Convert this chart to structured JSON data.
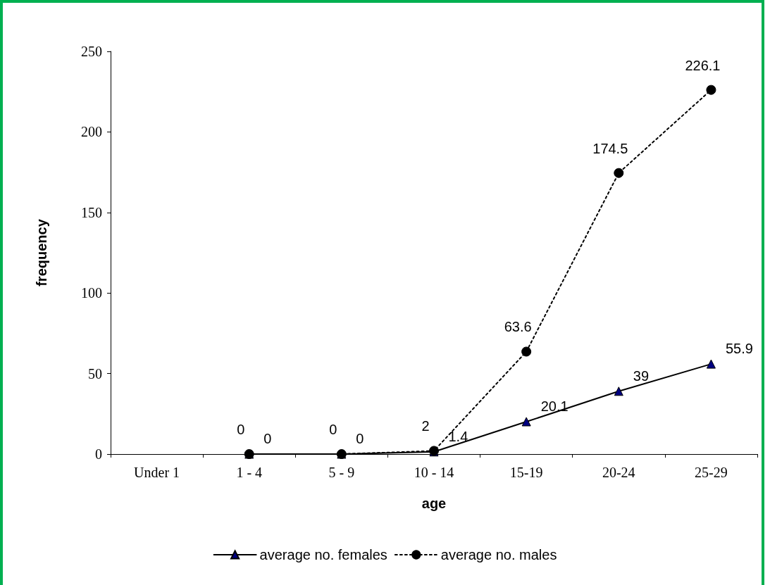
{
  "chart_data": {
    "type": "line",
    "xlabel": "age",
    "ylabel": "frequency",
    "categories": [
      "Under 1",
      "1 - 4",
      "5 - 9",
      "10 - 14",
      "15-19",
      "20-24",
      "25-29"
    ],
    "series": [
      {
        "name": "average no. females",
        "color": "#000080",
        "marker": "triangle",
        "line_style": "solid",
        "values": [
          null,
          0,
          0,
          1.4,
          20.1,
          39,
          55.9
        ]
      },
      {
        "name": "average no. males",
        "color": "#000000",
        "marker": "circle",
        "line_style": "dotted",
        "values": [
          null,
          0,
          0,
          2,
          63.6,
          174.5,
          226.1
        ]
      }
    ],
    "ylim": [
      0,
      250
    ],
    "yticks": [
      0,
      50,
      100,
      150,
      200,
      250
    ],
    "grid": false,
    "legend": "bottom",
    "data_labels": true
  }
}
